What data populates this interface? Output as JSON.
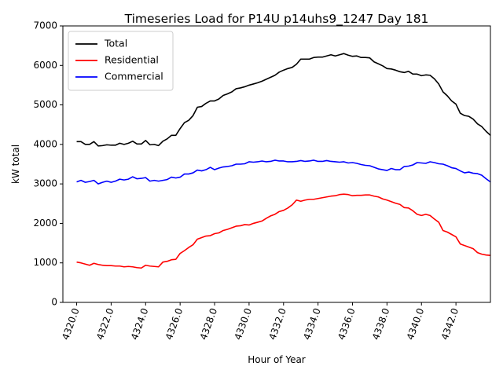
{
  "chart_data": {
    "type": "line",
    "title": "Timeseries Load for P14U p14uhs9_1247  Day 181",
    "xlabel": "Hour of Year",
    "ylabel": "kW total",
    "xlim": [
      4319.2,
      4344.0
    ],
    "ylim": [
      0,
      7000
    ],
    "xticks": [
      4320.0,
      4322.0,
      4324.0,
      4326.0,
      4328.0,
      4330.0,
      4332.0,
      4334.0,
      4336.0,
      4338.0,
      4340.0,
      4342.0
    ],
    "xtick_labels": [
      "4320.0",
      "4322.0",
      "4324.0",
      "4326.0",
      "4328.0",
      "4330.0",
      "4332.0",
      "4334.0",
      "4336.0",
      "4338.0",
      "4340.0",
      "4342.0"
    ],
    "yticks": [
      0,
      1000,
      2000,
      3000,
      4000,
      5000,
      6000,
      7000
    ],
    "ytick_labels": [
      "0",
      "1000",
      "2000",
      "3000",
      "4000",
      "5000",
      "6000",
      "7000"
    ],
    "legend_position": "top-left",
    "grid": false,
    "x_start": 4320.0,
    "x_step": 0.25,
    "series": [
      {
        "name": "Total",
        "color": "#000000",
        "values": [
          4070,
          4070,
          4000,
          4000,
          4070,
          3960,
          3970,
          3990,
          3980,
          3980,
          4030,
          4000,
          4030,
          4080,
          4010,
          4010,
          4100,
          3990,
          4000,
          3970,
          4080,
          4140,
          4230,
          4230,
          4400,
          4550,
          4610,
          4730,
          4940,
          4960,
          5040,
          5100,
          5100,
          5150,
          5240,
          5280,
          5330,
          5410,
          5430,
          5460,
          5500,
          5530,
          5560,
          5600,
          5650,
          5700,
          5750,
          5830,
          5880,
          5920,
          5950,
          6030,
          6160,
          6160,
          6160,
          6200,
          6210,
          6210,
          6240,
          6270,
          6240,
          6270,
          6300,
          6260,
          6230,
          6240,
          6200,
          6200,
          6190,
          6090,
          6040,
          5990,
          5920,
          5910,
          5880,
          5840,
          5820,
          5850,
          5780,
          5780,
          5740,
          5760,
          5750,
          5660,
          5530,
          5330,
          5230,
          5100,
          5020,
          4790,
          4730,
          4710,
          4640,
          4520,
          4450,
          4330,
          4230
        ]
      },
      {
        "name": "Residential",
        "color": "#ff0000",
        "values": [
          1020,
          1000,
          970,
          940,
          990,
          960,
          940,
          930,
          930,
          920,
          920,
          900,
          910,
          900,
          880,
          870,
          940,
          920,
          910,
          900,
          1020,
          1040,
          1080,
          1090,
          1240,
          1310,
          1390,
          1460,
          1600,
          1640,
          1680,
          1690,
          1740,
          1760,
          1820,
          1850,
          1890,
          1930,
          1940,
          1970,
          1960,
          2000,
          2030,
          2060,
          2130,
          2190,
          2230,
          2300,
          2330,
          2390,
          2470,
          2590,
          2560,
          2590,
          2610,
          2610,
          2630,
          2650,
          2670,
          2690,
          2700,
          2730,
          2740,
          2730,
          2700,
          2710,
          2710,
          2720,
          2720,
          2690,
          2670,
          2620,
          2590,
          2550,
          2510,
          2480,
          2400,
          2390,
          2320,
          2230,
          2200,
          2230,
          2200,
          2110,
          2030,
          1820,
          1780,
          1720,
          1660,
          1480,
          1440,
          1400,
          1360,
          1260,
          1220,
          1200,
          1190
        ]
      },
      {
        "name": "Commercial",
        "color": "#0000ff",
        "values": [
          3050,
          3090,
          3040,
          3060,
          3090,
          3000,
          3040,
          3070,
          3040,
          3070,
          3120,
          3100,
          3120,
          3180,
          3130,
          3140,
          3160,
          3070,
          3090,
          3070,
          3090,
          3110,
          3170,
          3150,
          3170,
          3250,
          3250,
          3280,
          3350,
          3330,
          3360,
          3420,
          3360,
          3400,
          3430,
          3440,
          3460,
          3500,
          3500,
          3510,
          3560,
          3550,
          3560,
          3580,
          3560,
          3570,
          3600,
          3580,
          3580,
          3560,
          3560,
          3570,
          3590,
          3570,
          3580,
          3600,
          3570,
          3570,
          3590,
          3570,
          3560,
          3550,
          3560,
          3530,
          3540,
          3520,
          3490,
          3470,
          3460,
          3420,
          3380,
          3360,
          3340,
          3390,
          3360,
          3360,
          3440,
          3450,
          3480,
          3540,
          3530,
          3520,
          3560,
          3540,
          3510,
          3500,
          3460,
          3410,
          3390,
          3330,
          3280,
          3300,
          3270,
          3260,
          3220,
          3130,
          3050
        ]
      }
    ]
  }
}
